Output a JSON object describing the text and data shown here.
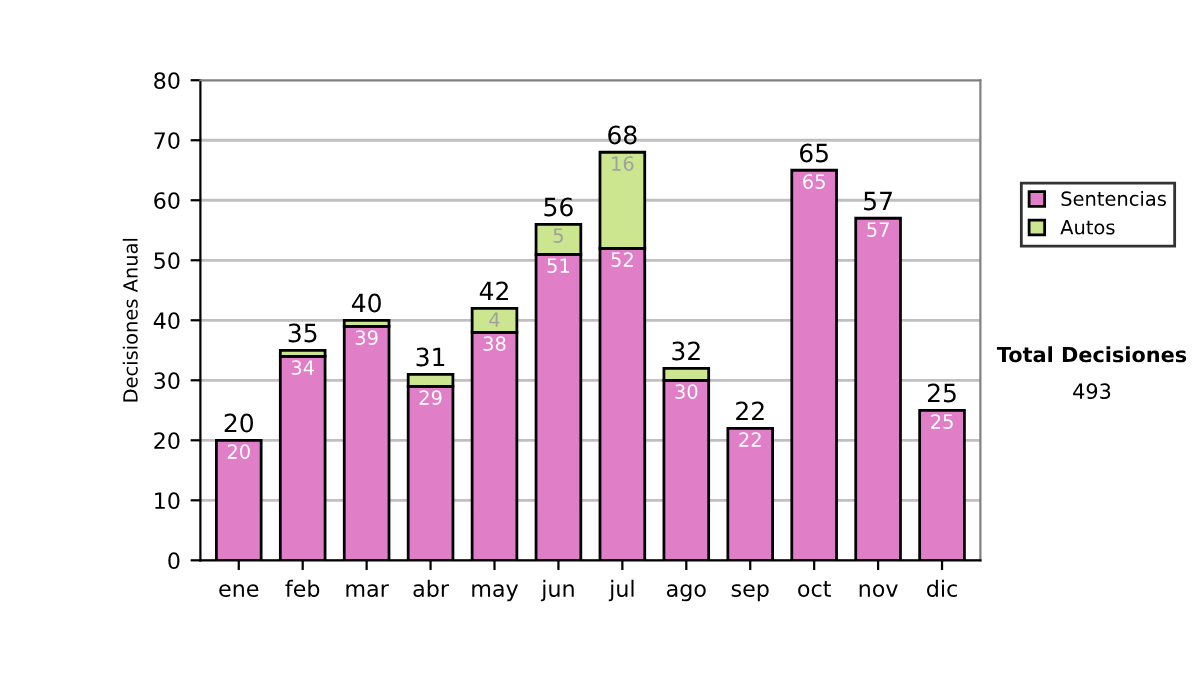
{
  "chart_data": {
    "type": "bar",
    "stacked": true,
    "ylabel": "Decisiones Anual",
    "categories": [
      "ene",
      "feb",
      "mar",
      "abr",
      "may",
      "jun",
      "jul",
      "ago",
      "sep",
      "oct",
      "nov",
      "dic"
    ],
    "series": [
      {
        "name": "Sentencias",
        "color": "#e07fc8",
        "values": [
          20,
          34,
          39,
          29,
          38,
          51,
          52,
          30,
          22,
          65,
          57,
          25
        ],
        "value_labels": [
          "20",
          "34",
          "39",
          "29",
          "38",
          "51",
          "52",
          "30",
          "22",
          "65",
          "57",
          "25"
        ]
      },
      {
        "name": "Autos",
        "color": "#cce68f",
        "values": [
          null,
          1,
          1,
          2,
          4,
          5,
          16,
          2,
          null,
          null,
          null,
          null
        ],
        "value_labels": [
          null,
          null,
          null,
          null,
          "4",
          "5",
          "16",
          null,
          null,
          null,
          null,
          null
        ]
      }
    ],
    "totals": [
      "20",
      "35",
      "40",
      "31",
      "42",
      "56",
      "68",
      "32",
      "22",
      "65",
      "57",
      "25"
    ],
    "ylim": [
      0,
      80
    ],
    "yticks": [
      0,
      10,
      20,
      30,
      40,
      50,
      60,
      70,
      80
    ],
    "grid": "y",
    "legend": "right",
    "annotations": [
      "Total Decisiones",
      "493"
    ]
  }
}
